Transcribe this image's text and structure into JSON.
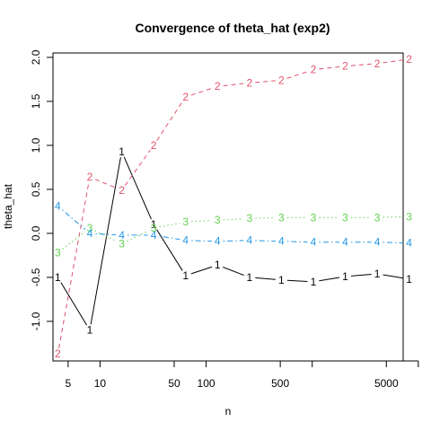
{
  "chart_data": {
    "type": "line",
    "title": "Convergence of theta_hat (exp2)",
    "xlabel": "n",
    "ylabel": "theta_hat",
    "x_scale": "log",
    "xlim": [
      3.6,
      7200
    ],
    "ylim": [
      -1.45,
      2.05
    ],
    "x_ticks": [
      5,
      10,
      50,
      100,
      500,
      5000
    ],
    "x_minor_ticks": [
      1000,
      10000
    ],
    "y_ticks": [
      -1.0,
      -0.5,
      0.0,
      0.5,
      1.0,
      1.5,
      2.0
    ],
    "y_tick_labels": [
      "-1.0",
      "-0.5",
      "0.0",
      "0.5",
      "1.0",
      "1.5",
      "2.0"
    ],
    "grid": false,
    "x": [
      4,
      8,
      16,
      32,
      64,
      128,
      256,
      512,
      1024,
      2048,
      4096,
      8192
    ],
    "series": [
      {
        "name": "1",
        "color": "#000000",
        "dash": "solid",
        "values": [
          -0.5,
          -1.1,
          0.93,
          0.1,
          -0.48,
          -0.36,
          -0.5,
          -0.53,
          -0.55,
          -0.49,
          -0.46,
          -0.52
        ]
      },
      {
        "name": "2",
        "color": "#df536b",
        "dash": "dashed",
        "values": [
          -1.37,
          0.64,
          0.49,
          1.0,
          1.55,
          1.67,
          1.71,
          1.74,
          1.86,
          1.9,
          1.93,
          1.98
        ]
      },
      {
        "name": "3",
        "color": "#61d04f",
        "dash": "dotted",
        "values": [
          -0.22,
          0.06,
          -0.12,
          0.06,
          0.13,
          0.15,
          0.17,
          0.18,
          0.18,
          0.18,
          0.18,
          0.19
        ]
      },
      {
        "name": "4",
        "color": "#2297e6",
        "dash": "dotdash",
        "values": [
          0.31,
          0.0,
          -0.02,
          -0.02,
          -0.08,
          -0.09,
          -0.08,
          -0.09,
          -0.1,
          -0.1,
          -0.1,
          -0.11
        ]
      }
    ]
  }
}
